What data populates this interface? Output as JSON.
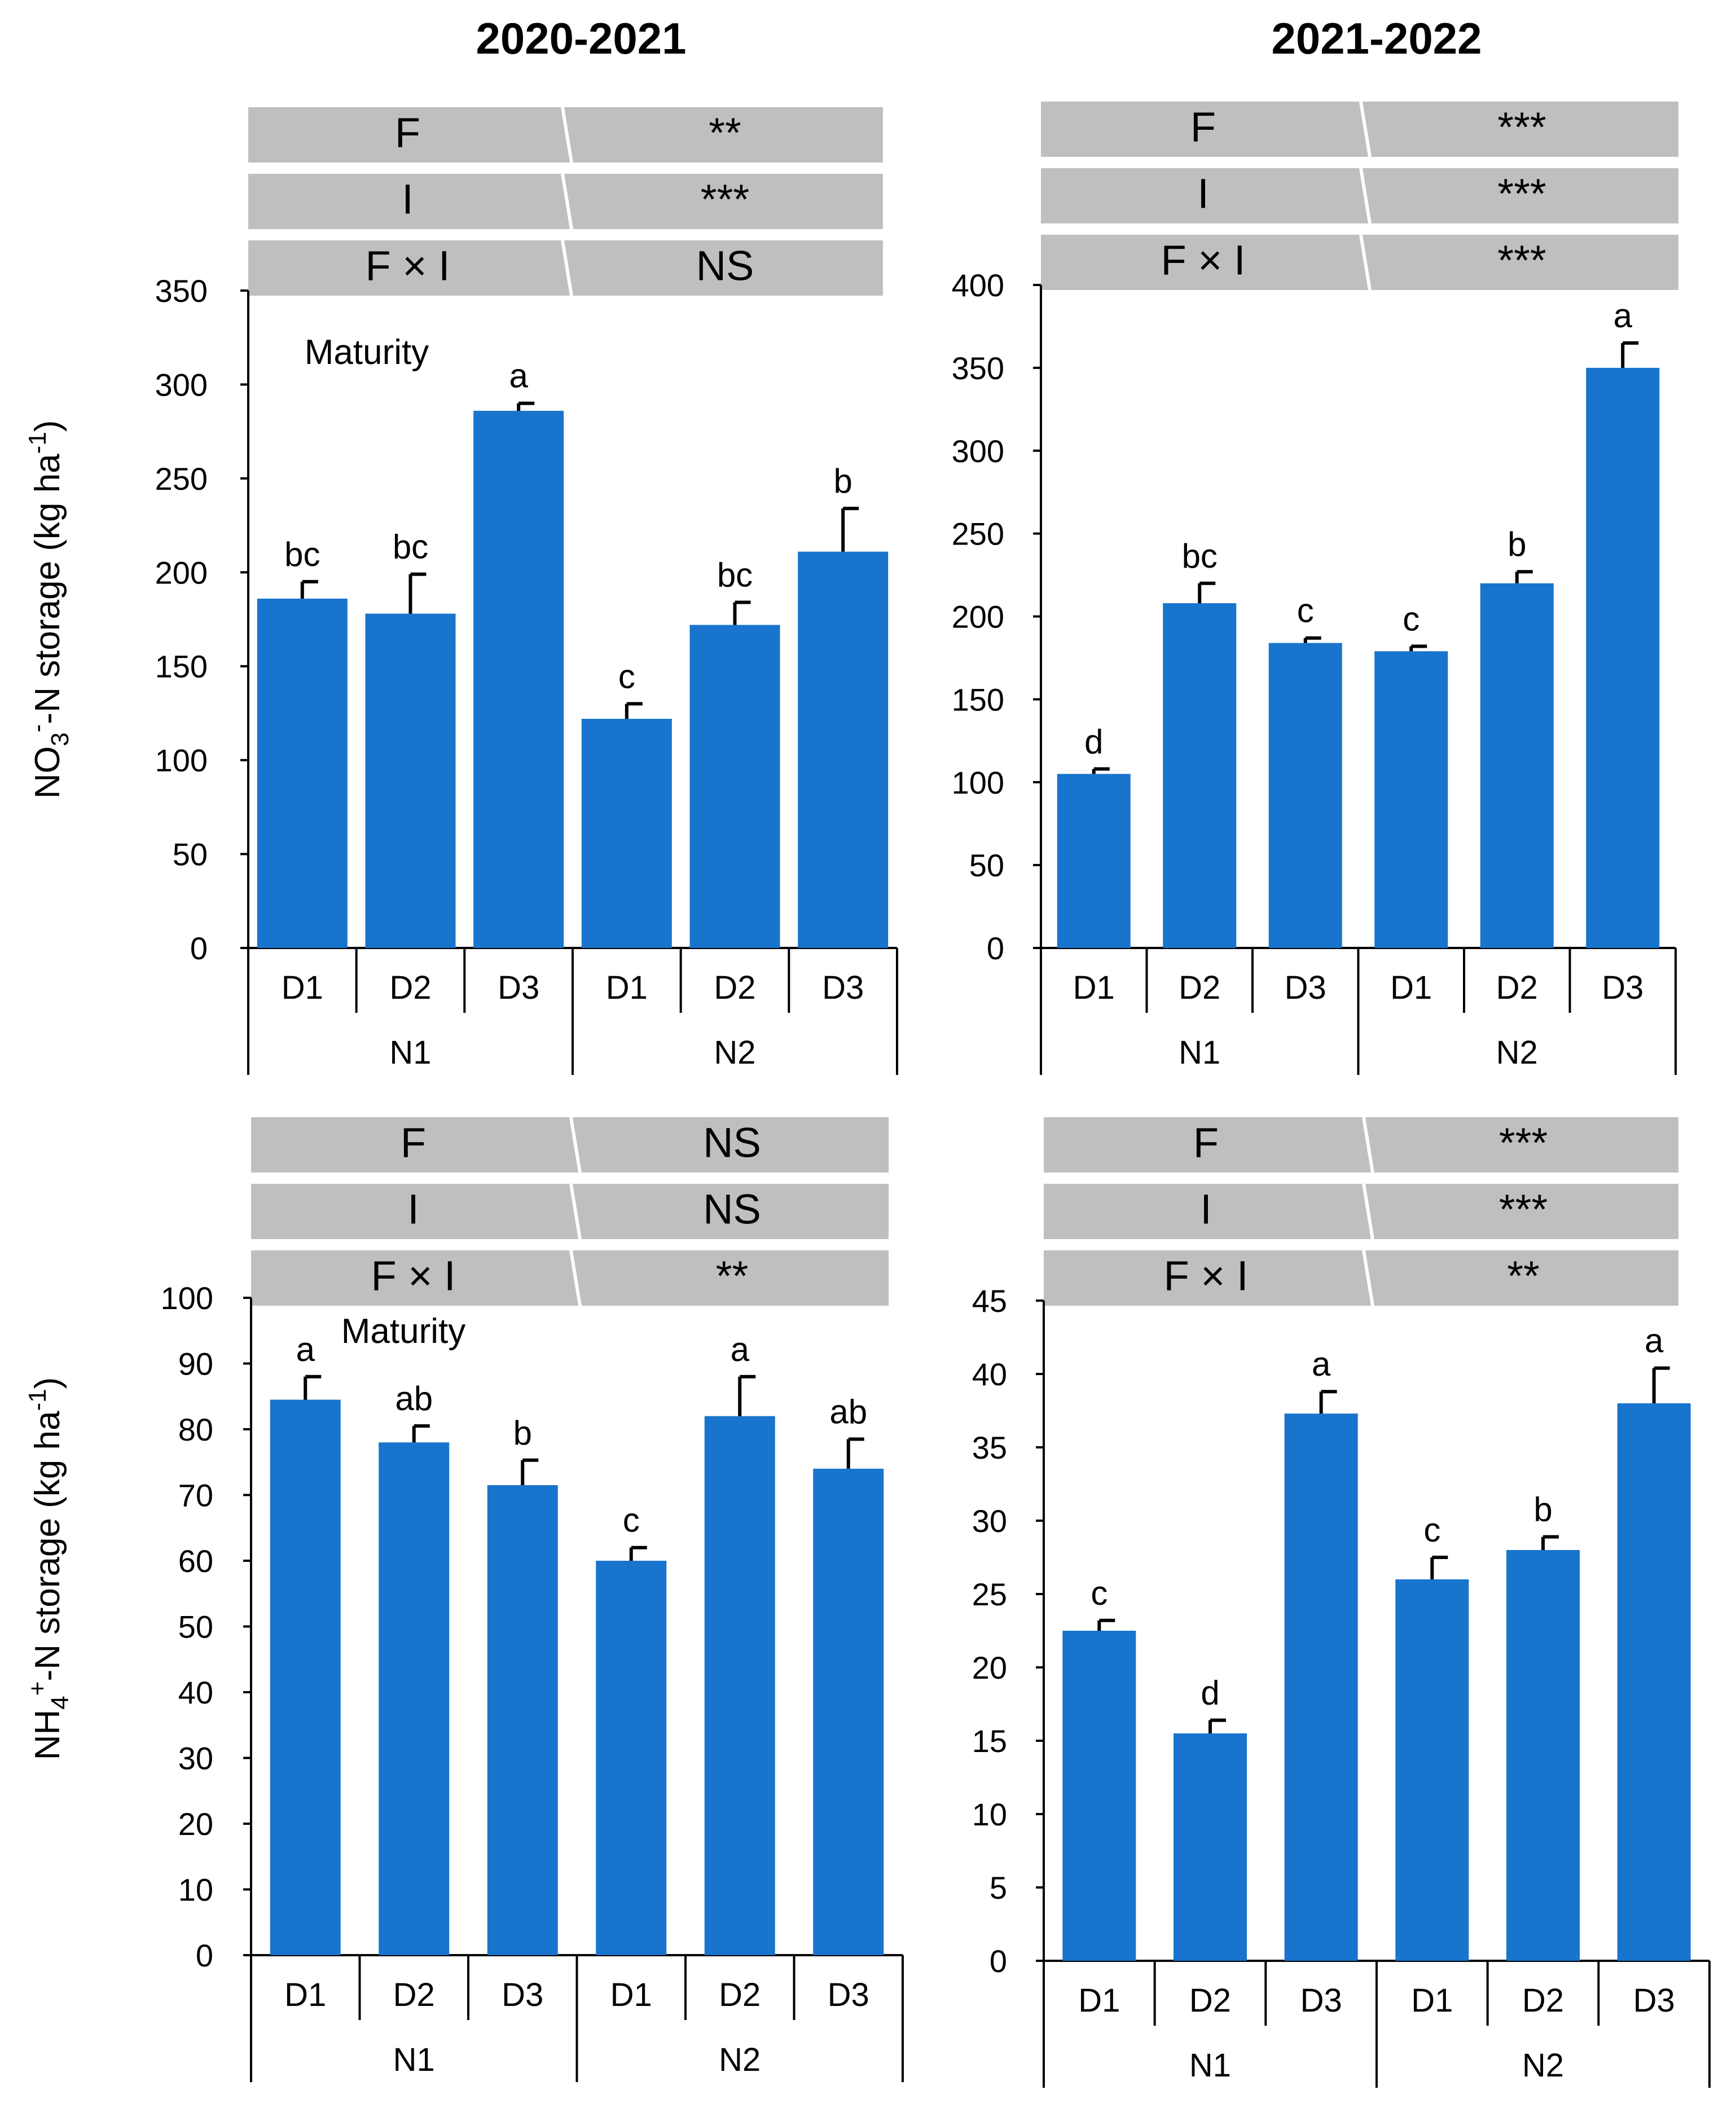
{
  "colors": {
    "bar": "#1874cd",
    "table": "#bfbfbf",
    "axis": "#000000"
  },
  "titles": {
    "left": "2020-2021",
    "right": "2021-2022"
  },
  "y_axis_labels": {
    "top": {
      "main": "NO",
      "sub": "3",
      "sup": "-",
      "rest": "-N storage (kg ha",
      "unit_sup": "-1",
      "close": ")"
    },
    "bottom": {
      "main": "NH",
      "sub": "4",
      "sup": "+",
      "rest": "-N storage (kg ha",
      "unit_sup": "-1",
      "close": ")"
    }
  },
  "chart_data": [
    {
      "id": "c1",
      "type": "bar",
      "title": "2020-2021",
      "annotation": "Maturity",
      "ylabel": "NO3--N storage (kg ha-1)",
      "ylim": [
        0,
        350
      ],
      "yticks": [
        0,
        50,
        100,
        150,
        200,
        250,
        300,
        350
      ],
      "categories": [
        "D1",
        "D2",
        "D3",
        "D1",
        "D2",
        "D3"
      ],
      "groups": [
        {
          "name": "N1",
          "span": [
            0,
            2
          ]
        },
        {
          "name": "N2",
          "span": [
            3,
            5
          ]
        }
      ],
      "values": [
        186,
        178,
        286,
        122,
        172,
        211
      ],
      "errors": [
        9,
        21,
        4,
        8,
        12,
        23
      ],
      "letters": [
        "bc",
        "bc",
        "a",
        "c",
        "bc",
        "b"
      ],
      "stats": [
        {
          "factor": "F",
          "sig": "**"
        },
        {
          "factor": "I",
          "sig": "***"
        },
        {
          "factor": "F × I",
          "sig": "NS"
        }
      ]
    },
    {
      "id": "c2",
      "type": "bar",
      "title": "2021-2022",
      "annotation": "",
      "ylabel": "NO3--N storage (kg ha-1)",
      "ylim": [
        0,
        400
      ],
      "yticks": [
        0,
        50,
        100,
        150,
        200,
        250,
        300,
        350,
        400
      ],
      "categories": [
        "D1",
        "D2",
        "D3",
        "D1",
        "D2",
        "D3"
      ],
      "groups": [
        {
          "name": "N1",
          "span": [
            0,
            2
          ]
        },
        {
          "name": "N2",
          "span": [
            3,
            5
          ]
        }
      ],
      "values": [
        105,
        208,
        184,
        179,
        220,
        350
      ],
      "errors": [
        3,
        12,
        3,
        3,
        7,
        15
      ],
      "letters": [
        "d",
        "bc",
        "c",
        "c",
        "b",
        "a"
      ],
      "stats": [
        {
          "factor": "F",
          "sig": "***"
        },
        {
          "factor": "I",
          "sig": "***"
        },
        {
          "factor": "F × I",
          "sig": "***"
        }
      ]
    },
    {
      "id": "c3",
      "type": "bar",
      "title": "2020-2021",
      "annotation": "Maturity",
      "ylabel": "NH4+-N storage (kg ha-1)",
      "ylim": [
        0,
        100
      ],
      "yticks": [
        0,
        10,
        20,
        30,
        40,
        50,
        60,
        70,
        80,
        90,
        100
      ],
      "categories": [
        "D1",
        "D2",
        "D3",
        "D1",
        "D2",
        "D3"
      ],
      "groups": [
        {
          "name": "N1",
          "span": [
            0,
            2
          ]
        },
        {
          "name": "N2",
          "span": [
            3,
            5
          ]
        }
      ],
      "values": [
        84.5,
        78,
        71.5,
        60,
        82,
        74
      ],
      "errors": [
        3.5,
        2.5,
        3.8,
        2,
        6,
        4.5
      ],
      "letters": [
        "a",
        "ab",
        "b",
        "c",
        "a",
        "ab"
      ],
      "stats": [
        {
          "factor": "F",
          "sig": "NS"
        },
        {
          "factor": "I",
          "sig": "NS"
        },
        {
          "factor": "F × I",
          "sig": "**"
        }
      ]
    },
    {
      "id": "c4",
      "type": "bar",
      "title": "2021-2022",
      "annotation": "",
      "ylabel": "NH4+-N storage (kg ha-1)",
      "ylim": [
        0,
        45
      ],
      "yticks": [
        0,
        5,
        10,
        15,
        20,
        25,
        30,
        35,
        40,
        45
      ],
      "categories": [
        "D1",
        "D2",
        "D3",
        "D1",
        "D2",
        "D3"
      ],
      "groups": [
        {
          "name": "N1",
          "span": [
            0,
            2
          ]
        },
        {
          "name": "N2",
          "span": [
            3,
            5
          ]
        }
      ],
      "values": [
        22.5,
        15.5,
        37.3,
        26,
        28,
        38
      ],
      "errors": [
        0.7,
        0.9,
        1.5,
        1.5,
        0.9,
        2.4
      ],
      "letters": [
        "c",
        "d",
        "a",
        "c",
        "b",
        "a"
      ],
      "stats": [
        {
          "factor": "F",
          "sig": "***"
        },
        {
          "factor": "I",
          "sig": "***"
        },
        {
          "factor": "F × I",
          "sig": "**"
        }
      ]
    }
  ]
}
